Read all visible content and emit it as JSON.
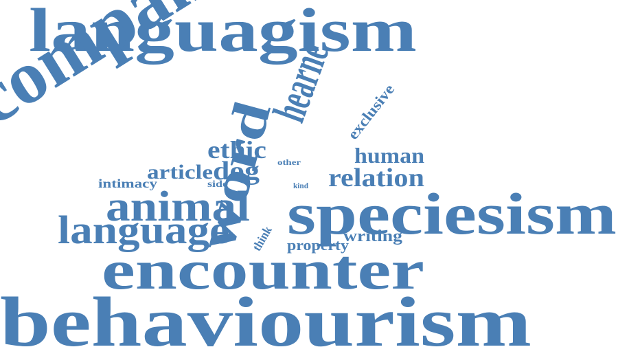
{
  "word_cloud": {
    "color": "#4a7fb5",
    "words": [
      {
        "key": "languagism",
        "text": "languagism"
      },
      {
        "key": "companion",
        "text": "companion"
      },
      {
        "key": "hearne",
        "text": "hearne"
      },
      {
        "key": "exclusive",
        "text": "exclusive"
      },
      {
        "key": "word",
        "text": "word"
      },
      {
        "key": "ethic",
        "text": "ethic"
      },
      {
        "key": "human",
        "text": "human"
      },
      {
        "key": "other",
        "text": "other"
      },
      {
        "key": "article",
        "text": "article"
      },
      {
        "key": "dog",
        "text": "dog"
      },
      {
        "key": "relation",
        "text": "relation"
      },
      {
        "key": "intimacy",
        "text": "intimacy"
      },
      {
        "key": "side",
        "text": "side"
      },
      {
        "key": "kind",
        "text": "kind"
      },
      {
        "key": "animal",
        "text": "animal"
      },
      {
        "key": "speciesism",
        "text": "speciesism"
      },
      {
        "key": "language",
        "text": "language"
      },
      {
        "key": "think",
        "text": "think"
      },
      {
        "key": "writing",
        "text": "writing"
      },
      {
        "key": "property",
        "text": "property"
      },
      {
        "key": "encounter",
        "text": "encounter"
      },
      {
        "key": "behaviourism",
        "text": "behaviourism"
      }
    ]
  }
}
